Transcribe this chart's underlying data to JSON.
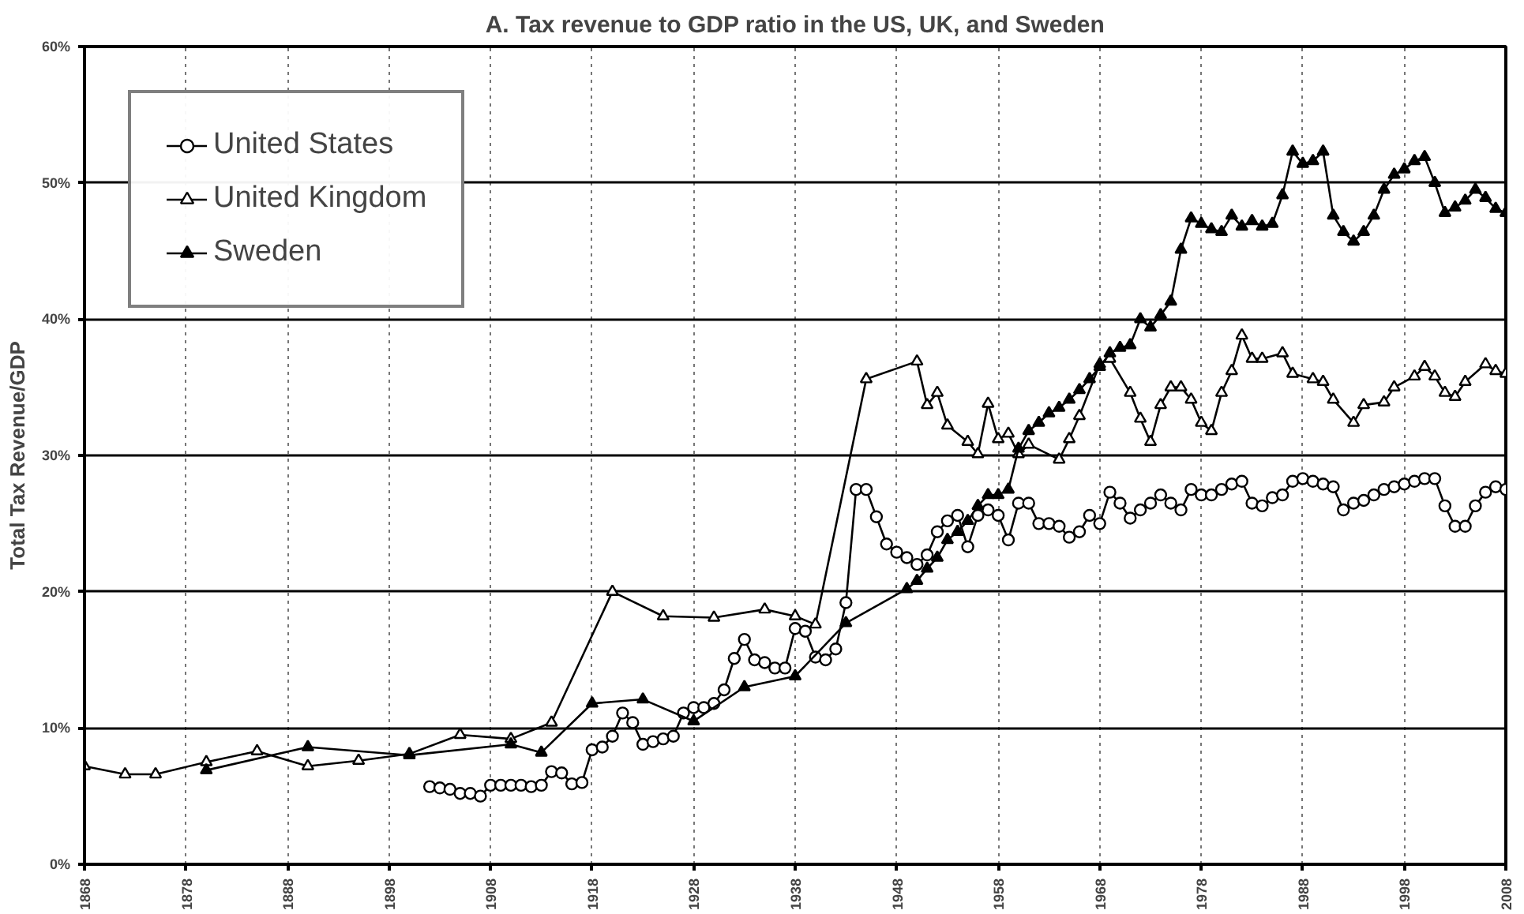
{
  "chart_data": {
    "type": "line",
    "title": "A. Tax revenue to GDP ratio in the US, UK, and Sweden",
    "ylabel": "Total Tax Revenue/GDP",
    "xlim": [
      1868,
      2008
    ],
    "xticks": [
      1868,
      1878,
      1888,
      1898,
      1908,
      1918,
      1928,
      1938,
      1948,
      1958,
      1968,
      1978,
      1988,
      1998,
      2008
    ],
    "ylim": [
      0,
      60
    ],
    "yticks": [
      {
        "value": 0,
        "label": "0%"
      },
      {
        "value": 10,
        "label": "10%"
      },
      {
        "value": 20,
        "label": "20%"
      },
      {
        "value": 30,
        "label": "30%"
      },
      {
        "value": 40,
        "label": "40%"
      },
      {
        "value": 50,
        "label": "50%"
      },
      {
        "value": 60,
        "label": "60%"
      }
    ],
    "grid": true,
    "legend": "top left",
    "line_style": "solid",
    "series": [
      {
        "name": "United States",
        "color": "#000000",
        "marker": "circle",
        "x": [
          1902,
          1903,
          1904,
          1905,
          1906,
          1907,
          1908,
          1909,
          1910,
          1911,
          1912,
          1913,
          1914,
          1915,
          1916,
          1917,
          1918,
          1919,
          1920,
          1921,
          1922,
          1923,
          1924,
          1925,
          1926,
          1927,
          1928,
          1929,
          1930,
          1931,
          1932,
          1933,
          1934,
          1935,
          1936,
          1937,
          1938,
          1939,
          1940,
          1941,
          1942,
          1943,
          1944,
          1945,
          1946,
          1947,
          1948,
          1949,
          1950,
          1951,
          1952,
          1953,
          1954,
          1955,
          1956,
          1957,
          1958,
          1959,
          1960,
          1961,
          1962,
          1963,
          1964,
          1965,
          1966,
          1967,
          1968,
          1969,
          1970,
          1971,
          1972,
          1973,
          1974,
          1975,
          1976,
          1977,
          1978,
          1979,
          1980,
          1981,
          1982,
          1983,
          1984,
          1985,
          1986,
          1987,
          1988,
          1989,
          1990,
          1991,
          1992,
          1993,
          1994,
          1995,
          1996,
          1997,
          1998,
          1999,
          2000,
          2001,
          2002,
          2003,
          2004,
          2005,
          2006,
          2007,
          2008
        ],
        "values": [
          5.7,
          5.6,
          5.5,
          5.2,
          5.2,
          5.0,
          5.8,
          5.8,
          5.8,
          5.8,
          5.7,
          5.8,
          6.8,
          6.7,
          5.9,
          6.0,
          8.4,
          8.6,
          9.4,
          11.1,
          10.4,
          8.8,
          9.0,
          9.2,
          9.4,
          11.1,
          11.5,
          11.5,
          11.8,
          12.8,
          15.1,
          16.5,
          15.0,
          14.8,
          14.4,
          14.4,
          17.3,
          17.1,
          15.2,
          15.0,
          15.8,
          19.2,
          27.5,
          27.5,
          25.5,
          23.5,
          22.9,
          22.5,
          22.0,
          22.7,
          24.4,
          25.2,
          25.6,
          23.3,
          25.6,
          26.0,
          25.6,
          23.8,
          26.5,
          26.5,
          25.0,
          25.0,
          24.8,
          24.0,
          24.4,
          25.6,
          25.0,
          27.3,
          26.5,
          25.4,
          26.0,
          26.5,
          27.1,
          26.5,
          26.0,
          27.5,
          27.1,
          27.1,
          27.5,
          27.9,
          28.1,
          26.5,
          26.3,
          26.9,
          27.1,
          28.1,
          28.3,
          28.1,
          27.9,
          27.7,
          26.0,
          26.5,
          26.7,
          27.1,
          27.5,
          27.7,
          27.9,
          28.1,
          28.3,
          28.3,
          26.3,
          24.8,
          24.8,
          26.3,
          27.3,
          27.7,
          27.5
        ]
      },
      {
        "name": "United Kingdom",
        "color": "#000000",
        "marker": "triangle",
        "x": [
          1868,
          1872,
          1875,
          1880,
          1885,
          1890,
          1895,
          1900,
          1905,
          1910,
          1914,
          1920,
          1925,
          1930,
          1935,
          1938,
          1940,
          1945,
          1950,
          1951,
          1952,
          1953,
          1955,
          1956,
          1957,
          1958,
          1959,
          1960,
          1961,
          1964,
          1965,
          1966,
          1968,
          1969,
          1971,
          1972,
          1973,
          1974,
          1975,
          1976,
          1977,
          1978,
          1979,
          1980,
          1981,
          1982,
          1983,
          1984,
          1986,
          1987,
          1989,
          1990,
          1991,
          1993,
          1994,
          1996,
          1997,
          1999,
          2000,
          2001,
          2002,
          2003,
          2004,
          2006,
          2007,
          2008
        ],
        "values": [
          7.2,
          6.6,
          6.6,
          7.5,
          8.3,
          7.2,
          7.6,
          8.1,
          9.5,
          9.2,
          10.4,
          20.0,
          18.2,
          18.1,
          18.7,
          18.2,
          17.6,
          35.6,
          36.9,
          33.7,
          34.6,
          32.2,
          31.0,
          30.1,
          33.8,
          31.2,
          31.6,
          30.1,
          30.8,
          29.7,
          31.2,
          32.9,
          36.7,
          37.1,
          34.6,
          32.7,
          31.0,
          33.7,
          35.0,
          35.0,
          34.1,
          32.4,
          31.8,
          34.6,
          36.2,
          38.8,
          37.1,
          37.1,
          37.5,
          36.0,
          35.6,
          35.4,
          34.1,
          32.4,
          33.7,
          33.9,
          35.0,
          35.8,
          36.5,
          35.8,
          34.6,
          34.3,
          35.4,
          36.7,
          36.2,
          36.0
        ]
      },
      {
        "name": "Sweden",
        "color": "#000000",
        "marker": "triangle",
        "x": [
          1880,
          1890,
          1900,
          1910,
          1913,
          1918,
          1923,
          1928,
          1933,
          1938,
          1943,
          1949,
          1950,
          1951,
          1952,
          1953,
          1954,
          1955,
          1956,
          1957,
          1958,
          1959,
          1960,
          1961,
          1962,
          1963,
          1964,
          1965,
          1966,
          1967,
          1968,
          1969,
          1970,
          1971,
          1972,
          1973,
          1974,
          1975,
          1976,
          1977,
          1978,
          1979,
          1980,
          1981,
          1982,
          1983,
          1984,
          1985,
          1986,
          1987,
          1988,
          1989,
          1990,
          1991,
          1992,
          1993,
          1994,
          1995,
          1996,
          1997,
          1998,
          1999,
          2000,
          2001,
          2002,
          2003,
          2004,
          2005,
          2006,
          2007,
          2008
        ],
        "values": [
          6.9,
          8.6,
          8.0,
          8.8,
          8.2,
          11.8,
          12.1,
          10.5,
          13.0,
          13.8,
          17.7,
          20.2,
          20.8,
          21.7,
          22.5,
          23.8,
          24.4,
          25.2,
          26.3,
          27.1,
          27.1,
          27.5,
          30.5,
          31.8,
          32.4,
          33.1,
          33.5,
          34.1,
          34.8,
          35.6,
          36.5,
          37.5,
          37.9,
          38.1,
          40.0,
          39.4,
          40.3,
          41.3,
          45.1,
          47.4,
          47.0,
          46.6,
          46.4,
          47.6,
          46.8,
          47.2,
          46.8,
          47.0,
          49.1,
          52.3,
          51.4,
          51.6,
          52.3,
          47.6,
          46.4,
          45.7,
          46.4,
          47.6,
          49.5,
          50.6,
          51.0,
          51.6,
          51.9,
          50.0,
          47.8,
          48.2,
          48.7,
          49.5,
          48.9,
          48.1,
          47.8
        ]
      }
    ]
  }
}
